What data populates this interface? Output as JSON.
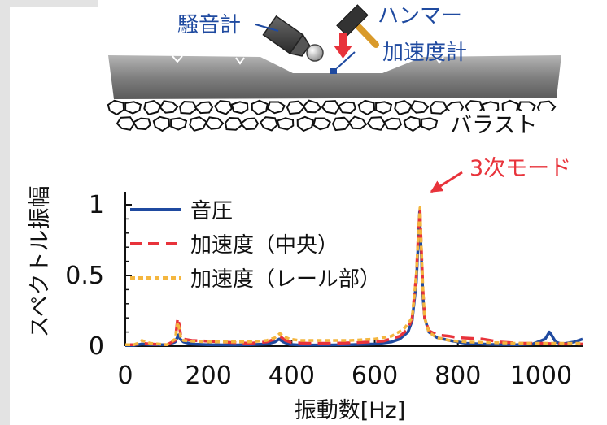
{
  "diagram": {
    "labels": {
      "noise_meter": "騒音計",
      "hammer": "ハンマー",
      "accelerometer": "加速度計",
      "ballast": "バラスト",
      "mode_annotation": "3次モード"
    }
  },
  "chart_data": {
    "type": "line",
    "title": "",
    "xlabel": "振動数[Hz]",
    "ylabel": "スペクトル振幅",
    "xlim": [
      0,
      1100
    ],
    "ylim": [
      0,
      1
    ],
    "xticks": [
      "0",
      "200",
      "400",
      "600",
      "800",
      "1000"
    ],
    "yticks": [
      "0",
      "0.5",
      "1"
    ],
    "grid": false,
    "legend_position": "top-left",
    "series": [
      {
        "name": "音圧",
        "color": "#1f4aa0",
        "style": "solid",
        "x": [
          0,
          20,
          30,
          40,
          60,
          100,
          120,
          128,
          132,
          140,
          160,
          200,
          260,
          300,
          340,
          360,
          370,
          380,
          395,
          420,
          480,
          540,
          600,
          640,
          660,
          680,
          690,
          700,
          705,
          708,
          712,
          716,
          720,
          730,
          750,
          780,
          820,
          880,
          940,
          980,
          1010,
          1020,
          1025,
          1035,
          1050,
          1080,
          1100
        ],
        "values": [
          0.005,
          0.005,
          0.01,
          0.015,
          0.01,
          0.01,
          0.03,
          0.08,
          0.05,
          0.03,
          0.015,
          0.01,
          0.008,
          0.01,
          0.015,
          0.03,
          0.05,
          0.03,
          0.012,
          0.008,
          0.008,
          0.01,
          0.015,
          0.03,
          0.05,
          0.1,
          0.18,
          0.45,
          0.75,
          0.95,
          0.65,
          0.35,
          0.2,
          0.1,
          0.06,
          0.04,
          0.02,
          0.012,
          0.01,
          0.015,
          0.05,
          0.1,
          0.08,
          0.03,
          0.015,
          0.03,
          0.05
        ]
      },
      {
        "name": "加速度（中央）",
        "color": "#e8333b",
        "style": "dashed",
        "x": [
          0,
          20,
          30,
          40,
          60,
          100,
          120,
          126,
          130,
          134,
          140,
          160,
          200,
          260,
          300,
          340,
          360,
          372,
          385,
          400,
          440,
          500,
          560,
          620,
          660,
          680,
          690,
          700,
          705,
          709,
          712,
          716,
          720,
          730,
          750,
          780,
          800,
          830,
          860,
          900,
          950,
          1000,
          1050,
          1100
        ],
        "values": [
          0.01,
          0.01,
          0.015,
          0.02,
          0.015,
          0.01,
          0.04,
          0.2,
          0.15,
          0.06,
          0.05,
          0.04,
          0.035,
          0.025,
          0.02,
          0.03,
          0.05,
          0.07,
          0.04,
          0.025,
          0.02,
          0.02,
          0.025,
          0.035,
          0.07,
          0.12,
          0.2,
          0.5,
          0.8,
          0.97,
          0.7,
          0.4,
          0.2,
          0.11,
          0.08,
          0.07,
          0.06,
          0.055,
          0.05,
          0.03,
          0.02,
          0.02,
          0.015,
          0.015
        ]
      },
      {
        "name": "加速度（レール部）",
        "color": "#f4b63f",
        "style": "dotted",
        "x": [
          0,
          20,
          30,
          40,
          60,
          100,
          120,
          126,
          130,
          134,
          140,
          160,
          200,
          260,
          300,
          340,
          360,
          372,
          380,
          395,
          420,
          480,
          540,
          600,
          640,
          670,
          690,
          700,
          705,
          709,
          712,
          716,
          720,
          730,
          750,
          780,
          820,
          880,
          940,
          1000,
          1050,
          1100
        ],
        "values": [
          0.01,
          0.01,
          0.02,
          0.04,
          0.02,
          0.01,
          0.05,
          0.17,
          0.12,
          0.05,
          0.04,
          0.035,
          0.03,
          0.03,
          0.03,
          0.04,
          0.06,
          0.09,
          0.07,
          0.05,
          0.04,
          0.04,
          0.04,
          0.05,
          0.07,
          0.12,
          0.2,
          0.5,
          0.8,
          0.98,
          0.7,
          0.4,
          0.2,
          0.1,
          0.06,
          0.04,
          0.03,
          0.025,
          0.02,
          0.02,
          0.02,
          0.02
        ]
      }
    ]
  }
}
